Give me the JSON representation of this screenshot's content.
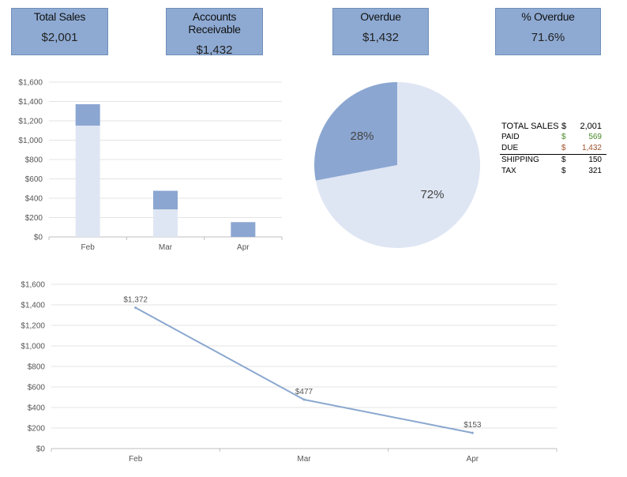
{
  "kpis": [
    {
      "label": "Total Sales",
      "value": "$2,001"
    },
    {
      "label": "Accounts Receivable",
      "value": "$1,432"
    },
    {
      "label": "Overdue",
      "value": "$1,432"
    },
    {
      "label": "% Overdue",
      "value": "71.6%"
    }
  ],
  "summary": {
    "rows": [
      {
        "label": "TOTAL SALES",
        "currency": "$",
        "value": "2,001"
      },
      {
        "label": "PAID",
        "currency": "$",
        "value": "569"
      },
      {
        "label": "DUE",
        "currency": "$",
        "value": "1,432"
      },
      {
        "label": "SHIPPING",
        "currency": "$",
        "value": "150"
      },
      {
        "label": "TAX",
        "currency": "$",
        "value": "321"
      }
    ]
  },
  "colors": {
    "dark": "#8ba6d1",
    "light": "#dfe6f3",
    "line": "#8aa7cf",
    "kpi_bg": "#8eaad3"
  },
  "chart_data": [
    {
      "type": "bar",
      "stacked": true,
      "categories": [
        "Feb",
        "Mar",
        "Apr"
      ],
      "series": [
        {
          "values": [
            1150,
            285,
            0
          ]
        },
        {
          "values": [
            222,
            192,
            153
          ]
        }
      ],
      "ylim": [
        0,
        1600
      ],
      "yticks": [
        "$0",
        "$200",
        "$400",
        "$600",
        "$800",
        "$1,000",
        "$1,200",
        "$1,400",
        "$1,600"
      ],
      "grid": true
    },
    {
      "type": "pie",
      "slices": [
        {
          "label": "72%",
          "value": 72
        },
        {
          "label": "28%",
          "value": 28
        }
      ]
    },
    {
      "type": "line",
      "categories": [
        "Feb",
        "Mar",
        "Apr"
      ],
      "values": [
        1372,
        477,
        153
      ],
      "data_labels": [
        "$1,372",
        "$477",
        "$153"
      ],
      "ylim": [
        0,
        1600
      ],
      "yticks": [
        "$0",
        "$200",
        "$400",
        "$600",
        "$800",
        "$1,000",
        "$1,200",
        "$1,400",
        "$1,600"
      ],
      "grid": true
    }
  ]
}
